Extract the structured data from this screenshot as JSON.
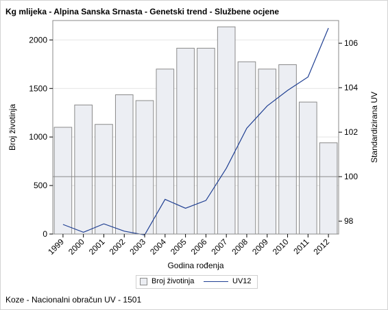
{
  "title": "Kg mlijeka - Alpina Sanska Srnasta - Genetski trend - Službene ocjene",
  "footnote": "Koze - Nacionalni obračun UV - 1501",
  "chart_data": {
    "type": "bar",
    "categories": [
      "1999",
      "2000",
      "2001",
      "2002",
      "2003",
      "2004",
      "2005",
      "2006",
      "2007",
      "2008",
      "2009",
      "2010",
      "2011",
      "2012"
    ],
    "series": [
      {
        "name": "Broj životinja",
        "type": "bar",
        "axis": "left",
        "values": [
          1100,
          1330,
          1130,
          1435,
          1375,
          1700,
          1915,
          1915,
          2135,
          1775,
          1700,
          1745,
          1360,
          940
        ]
      },
      {
        "name": "UV12",
        "type": "line",
        "axis": "right",
        "values": [
          97.85,
          97.5,
          97.88,
          97.55,
          97.38,
          98.98,
          98.58,
          98.93,
          100.38,
          102.18,
          103.18,
          103.88,
          104.48,
          106.68
        ]
      }
    ],
    "xlabel": "Godina rođenja",
    "ylabel_left": "Broj životinja",
    "ylabel_right": "Standardizirana UV",
    "ylim_left": [
      0,
      2200
    ],
    "ylim_right": [
      97.42,
      107.02
    ],
    "yticks_left": [
      0,
      500,
      1000,
      1500,
      2000
    ],
    "yticks_right": [
      98,
      100,
      102,
      104,
      106
    ],
    "reference_line_right": 100,
    "grid": true,
    "legend_position": "bottom",
    "colors": {
      "bar_fill": "#eceef3",
      "bar_stroke": "#8a8a8a",
      "line": "#1f3f92",
      "gridline": "#e4e4e4",
      "refline": "#8a8a8a"
    }
  }
}
